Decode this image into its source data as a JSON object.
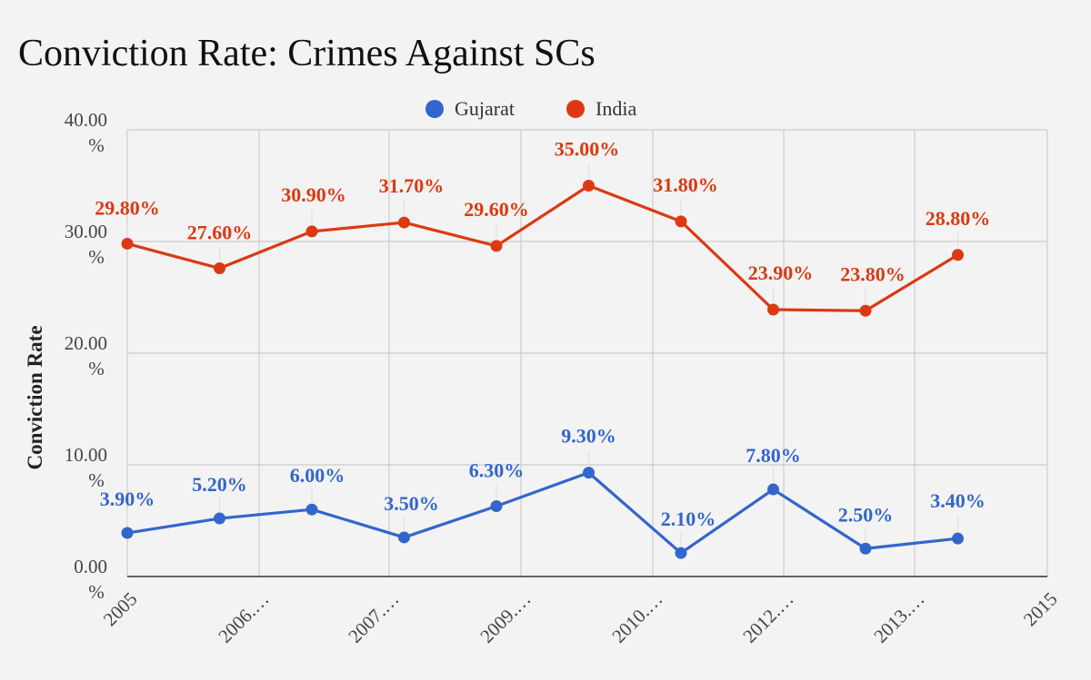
{
  "chart_data": {
    "type": "line",
    "title": "Conviction Rate: Crimes Against SCs",
    "ylabel": "Conviction Rate",
    "xlabel": "",
    "ylim": [
      0,
      40
    ],
    "y_ticks": [
      {
        "value": 0,
        "label_top": "0.00",
        "label_bottom": "%"
      },
      {
        "value": 10,
        "label_top": "10.00",
        "label_bottom": "%"
      },
      {
        "value": 20,
        "label_top": "20.00",
        "label_bottom": "%"
      },
      {
        "value": 30,
        "label_top": "30.00",
        "label_bottom": "%"
      },
      {
        "value": 40,
        "label_top": "40.00",
        "label_bottom": "%"
      }
    ],
    "x_tick_labels": [
      "2005",
      "2006.…",
      "2007.…",
      "2009.…",
      "2010.…",
      "2012.…",
      "2013.…",
      "2015"
    ],
    "grid": true,
    "legend_position": "top",
    "series": [
      {
        "name": "Gujarat",
        "color": "#3366cc",
        "values": [
          3.9,
          5.2,
          6.0,
          3.5,
          6.3,
          9.3,
          2.1,
          7.8,
          2.5,
          3.4
        ],
        "labels": [
          "3.90%",
          "5.20%",
          "6.00%",
          "3.50%",
          "6.30%",
          "9.30%",
          "2.10%",
          "7.80%",
          "2.50%",
          "3.40%"
        ]
      },
      {
        "name": "India",
        "color": "#dc3912",
        "values": [
          29.8,
          27.6,
          30.9,
          31.7,
          29.6,
          35.0,
          31.8,
          23.9,
          23.8,
          28.8
        ],
        "labels": [
          "29.80%",
          "27.60%",
          "30.90%",
          "31.70%",
          "29.60%",
          "35.00%",
          "31.80%",
          "23.90%",
          "23.80%",
          "28.80%"
        ]
      }
    ]
  }
}
